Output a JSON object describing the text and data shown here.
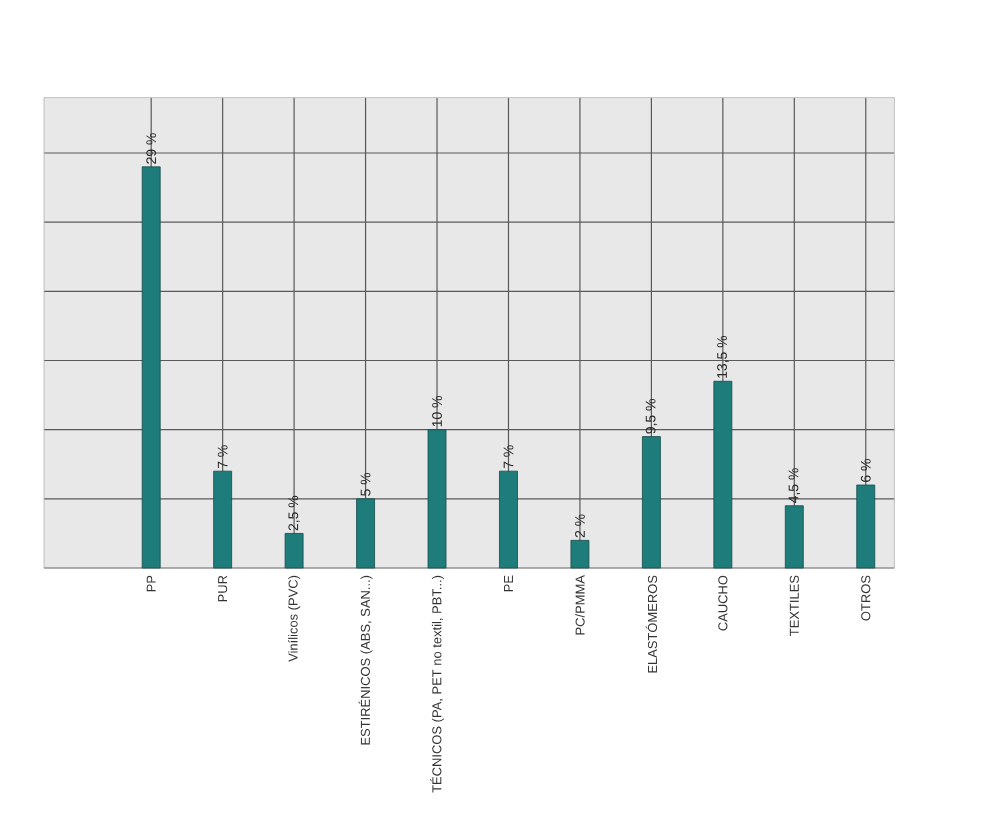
{
  "chart_data": {
    "type": "bar",
    "categories": [
      "PP",
      "PUR",
      "Vinílicos (PVC)",
      "ESTIRÉNICOS (ABS, SAN...)",
      "TÉCNICOS (PA, PET no textil, PBT...)",
      "PE",
      "PC/PMMA",
      "ELASTÓMEROS",
      "CAUCHO",
      "TEXTILES",
      "OTROS"
    ],
    "values": [
      29,
      7,
      2.5,
      5,
      10,
      7,
      2,
      9.5,
      13.5,
      4.5,
      6
    ],
    "value_labels": [
      "29 %",
      "7 %",
      "2,5 %",
      "5 %",
      "10 %",
      "7 %",
      "2 %",
      "9,5 %",
      "13,5 %",
      "4,5 %",
      "6 %"
    ],
    "color": "#1e7d7a",
    "ylim": [
      0,
      34
    ],
    "yticks": [
      {
        "value": 0,
        "label": null
      },
      {
        "value": 5,
        "label": null
      },
      {
        "value": 10,
        "label": null
      },
      {
        "value": 15,
        "label": null
      },
      {
        "value": 20,
        "label": null
      },
      {
        "value": 25,
        "label": null
      },
      {
        "value": 30,
        "label": null
      }
    ],
    "grid": true,
    "tick_labels": "x"
  }
}
